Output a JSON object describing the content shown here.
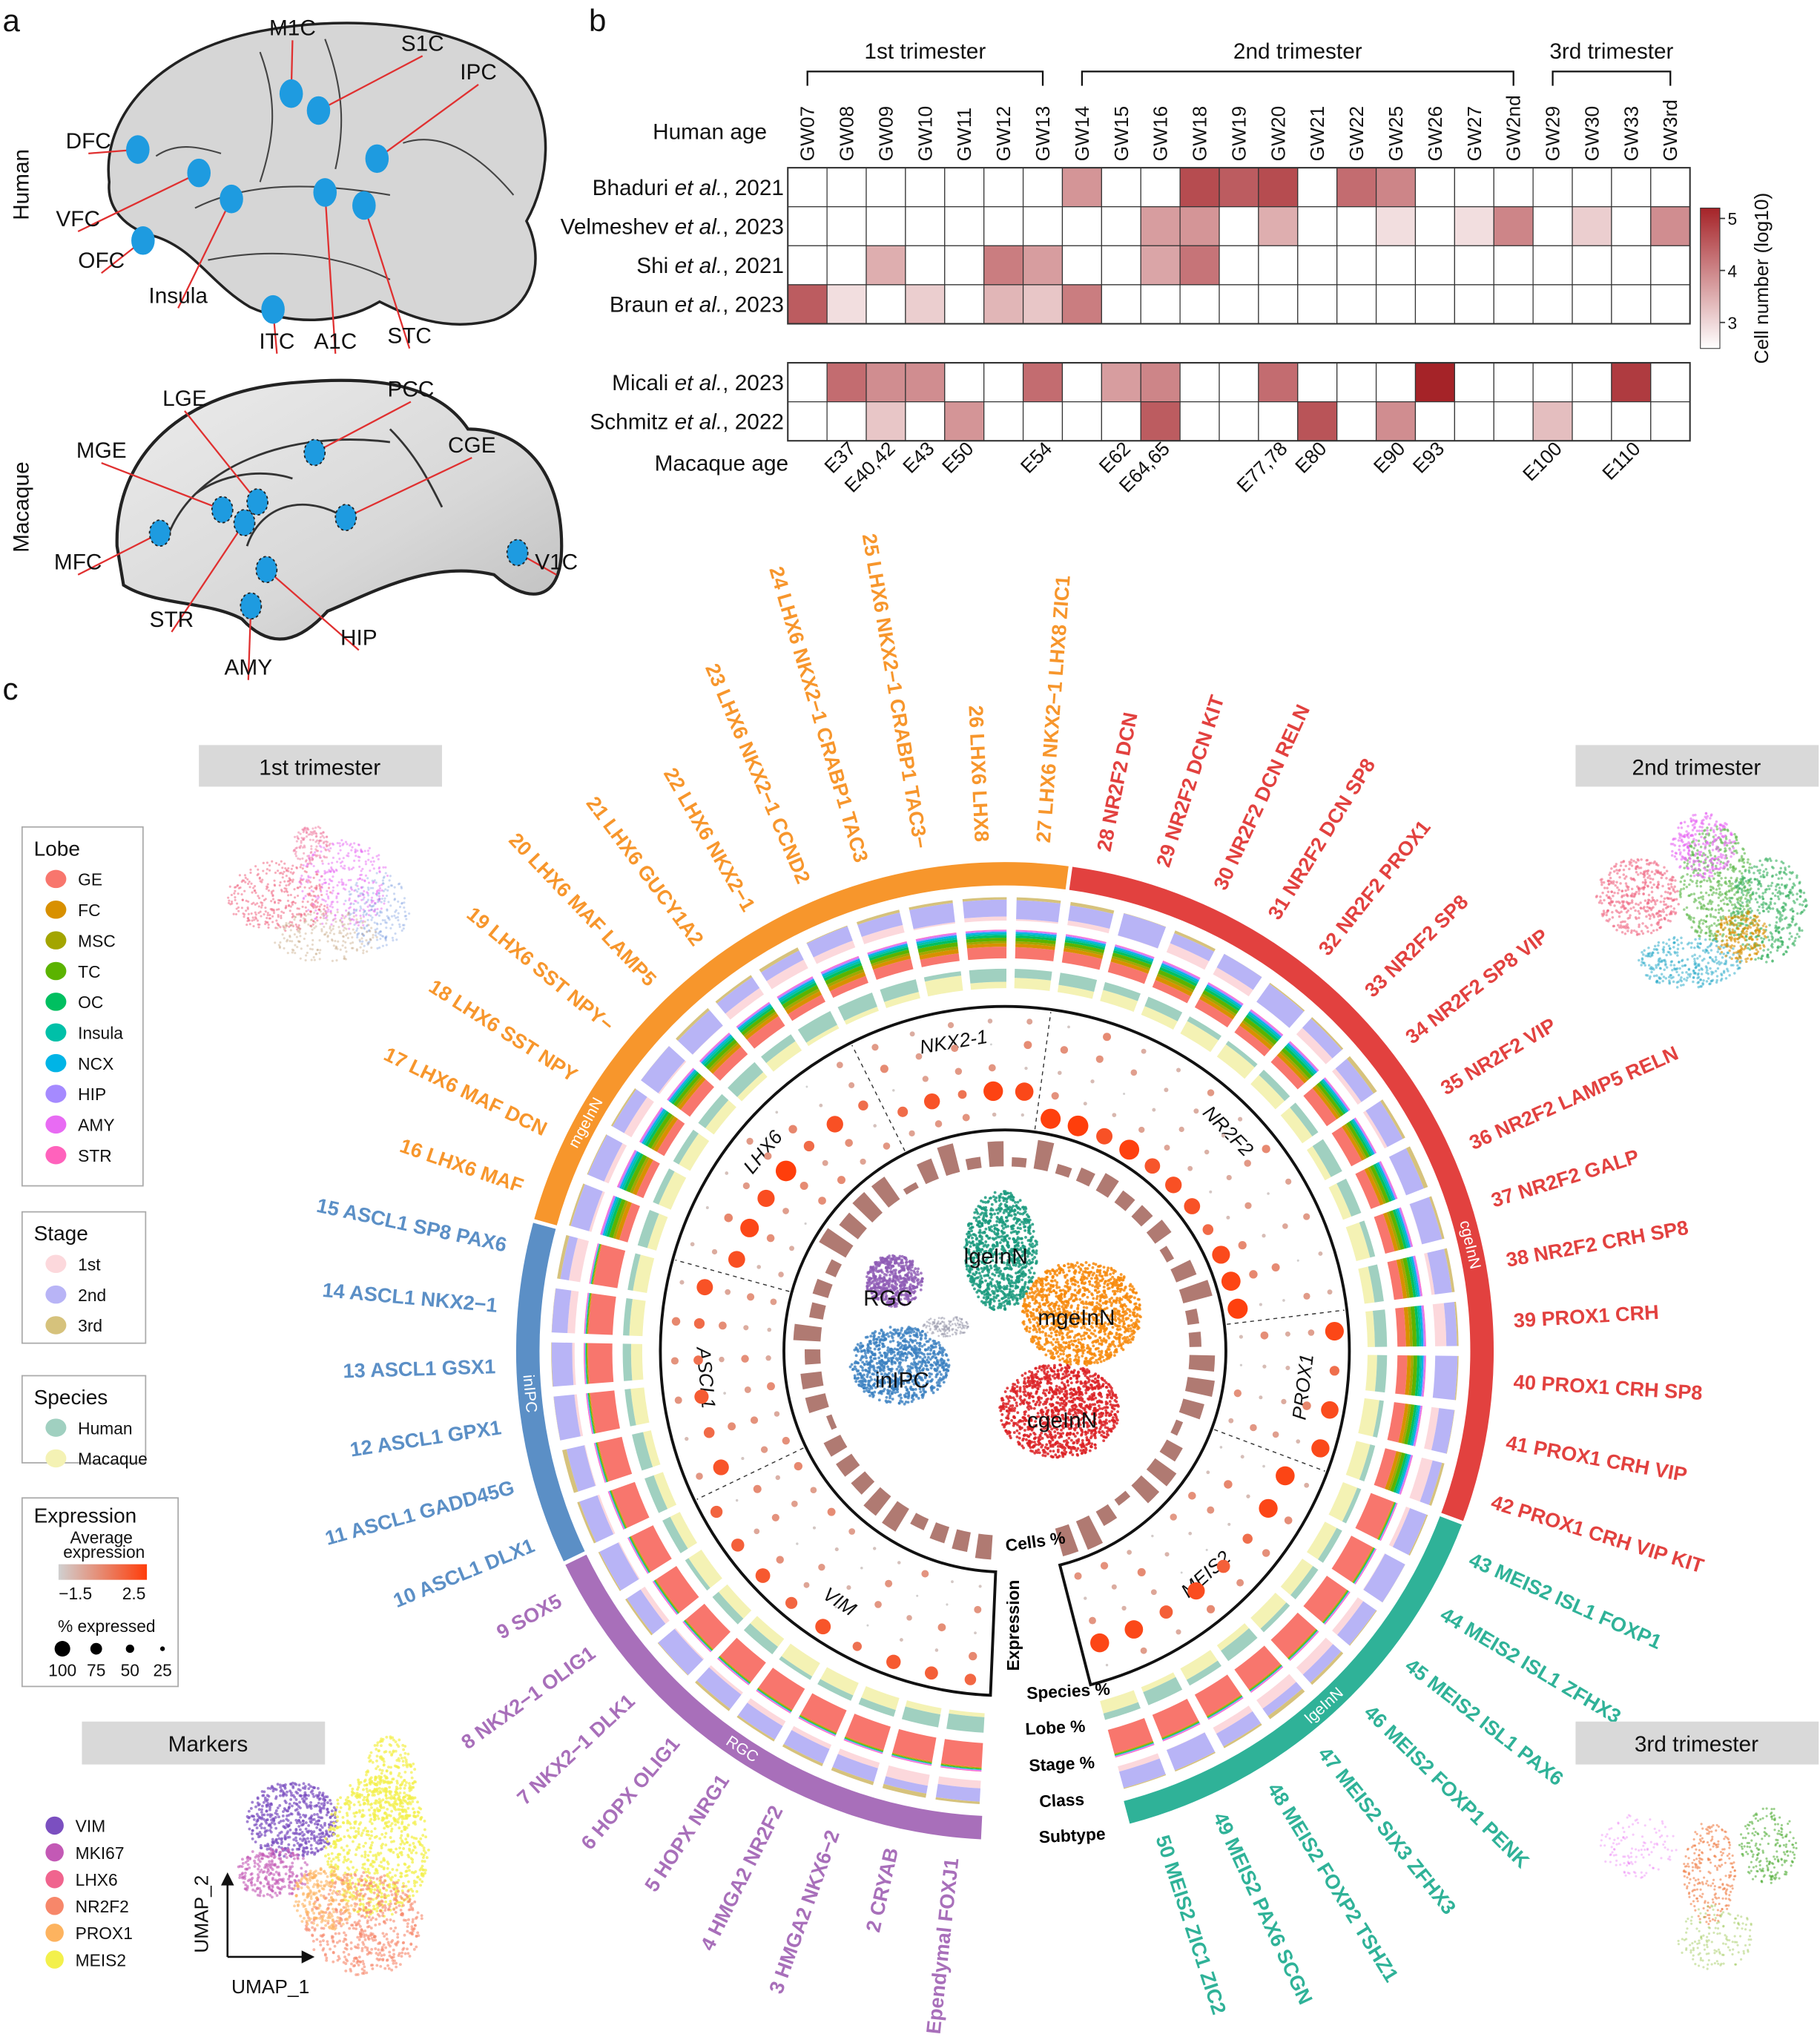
{
  "panels": {
    "a": "a",
    "b": "b",
    "c": "c"
  },
  "panel_a": {
    "human_label": "Human",
    "macaque_label": "Macaque",
    "human_regions": [
      "M1C",
      "S1C",
      "IPC",
      "DFC",
      "VFC",
      "OFC",
      "Insula",
      "ITC",
      "A1C",
      "STC"
    ],
    "macaque_regions": [
      "LGE",
      "PCC",
      "MGE",
      "CGE",
      "MFC",
      "V1C",
      "STR",
      "HIP",
      "AMY"
    ],
    "region_color": "#1e9be0",
    "line_color": "#e03030"
  },
  "chart_data": {
    "type": "heatmap",
    "title": "",
    "xlabel": "Human age",
    "x2label": "Macaque age",
    "colorbar_label": "Cell number (log10)",
    "colorbar_ticks": [
      3,
      4,
      5
    ],
    "color_range": [
      2.5,
      5.2
    ],
    "colors": {
      "low": "#ffffff",
      "high": "#a52328"
    },
    "trimesters": [
      {
        "label": "1st trimester",
        "from": "GW07",
        "to": "GW13"
      },
      {
        "label": "2nd trimester",
        "from": "GW14",
        "to": "GW2nd"
      },
      {
        "label": "3rd trimester",
        "from": "GW29",
        "to": "GW3rd"
      }
    ],
    "columns": [
      "GW07",
      "GW08",
      "GW09",
      "GW10",
      "GW11",
      "GW12",
      "GW13",
      "GW14",
      "GW15",
      "GW16",
      "GW18",
      "GW19",
      "GW20",
      "GW21",
      "GW22",
      "GW25",
      "GW26",
      "GW27",
      "GW2nd",
      "GW29",
      "GW30",
      "GW33",
      "GW3rd"
    ],
    "macaque_ages": [
      {
        "label": "E37",
        "column": "GW08"
      },
      {
        "label": "E40,42",
        "column": "GW09"
      },
      {
        "label": "E43",
        "column": "GW10"
      },
      {
        "label": "E50",
        "column": "GW11"
      },
      {
        "label": "E54",
        "column": "GW13"
      },
      {
        "label": "E62",
        "column": "GW15"
      },
      {
        "label": "E64,65",
        "column": "GW16"
      },
      {
        "label": "E77,78",
        "column": "GW20"
      },
      {
        "label": "E80",
        "column": "GW21"
      },
      {
        "label": "E90",
        "column": "GW25"
      },
      {
        "label": "E93",
        "column": "GW26"
      },
      {
        "label": "E100",
        "column": "GW29"
      },
      {
        "label": "E110",
        "column": "GW33"
      }
    ],
    "rows": [
      {
        "author": "Bhaduri ",
        "etal": "et al.",
        "year": ", 2021",
        "species": "human",
        "values": [
          null,
          null,
          null,
          null,
          null,
          null,
          null,
          3.8,
          null,
          null,
          4.7,
          4.5,
          4.7,
          null,
          4.3,
          4.0,
          null,
          null,
          null,
          null,
          null,
          null,
          null
        ]
      },
      {
        "author": "Velmeshev ",
        "etal": "et al.",
        "year": ", 2023",
        "species": "human",
        "values": [
          null,
          null,
          null,
          null,
          null,
          null,
          null,
          null,
          null,
          3.7,
          3.8,
          null,
          3.5,
          null,
          null,
          2.9,
          null,
          2.9,
          4.0,
          null,
          3.1,
          null,
          3.9
        ]
      },
      {
        "author": "Shi ",
        "etal": "et al.",
        "year": ", 2021",
        "species": "human",
        "values": [
          null,
          null,
          3.5,
          null,
          null,
          4.1,
          3.7,
          null,
          null,
          3.6,
          4.2,
          null,
          null,
          null,
          null,
          null,
          null,
          null,
          null,
          null,
          null,
          null,
          null
        ]
      },
      {
        "author": "Braun ",
        "etal": "et al.",
        "year": ", 2023",
        "species": "human",
        "values": [
          4.5,
          2.9,
          null,
          3.1,
          null,
          3.4,
          3.2,
          4.1,
          null,
          null,
          null,
          null,
          null,
          null,
          null,
          null,
          null,
          null,
          null,
          null,
          null,
          null,
          null
        ]
      },
      {
        "author": "Micali ",
        "etal": "et al.",
        "year": ", 2023",
        "species": "macaque",
        "values": [
          null,
          4.3,
          3.9,
          3.9,
          null,
          null,
          4.3,
          null,
          3.7,
          4.0,
          null,
          null,
          4.3,
          null,
          null,
          null,
          5.2,
          null,
          null,
          null,
          null,
          4.9,
          null
        ]
      },
      {
        "author": "Schmitz ",
        "etal": "et al.",
        "year": ", 2022",
        "species": "macaque",
        "values": [
          null,
          null,
          3.2,
          null,
          3.8,
          null,
          null,
          null,
          null,
          4.5,
          null,
          null,
          null,
          4.6,
          null,
          3.9,
          null,
          null,
          null,
          3.3,
          null,
          null,
          null
        ]
      }
    ]
  },
  "panel_c": {
    "stage_boxes": {
      "first": "1st trimester",
      "second": "2nd trimester",
      "third": "3rd trimester",
      "markers": "Markers"
    },
    "umap_axes": {
      "x": "UMAP_1",
      "y": "UMAP_2"
    },
    "center_umap_labels": {
      "rgc": "RGC",
      "inipc": "inIPC",
      "lge": "lgeInN",
      "mge": "mgeInN",
      "cge": "cgeInN"
    },
    "ring_labels": {
      "cells": "Cells %",
      "expression": "Expression",
      "species": "Species %",
      "lobe": "Lobe %",
      "stage": "Stage %",
      "class": "Class",
      "subtype": "Subtype"
    },
    "classes": [
      {
        "name": "RGC",
        "color": "#a86fba",
        "from": 1,
        "to": 9
      },
      {
        "name": "inIPC",
        "color": "#5b8fc6",
        "from": 10,
        "to": 15
      },
      {
        "name": "mgeInN",
        "color": "#f7962c",
        "from": 16,
        "to": 27
      },
      {
        "name": "cgeInN",
        "color": "#e2413f",
        "from": 28,
        "to": 42
      },
      {
        "name": "lgeInN",
        "color": "#2fb298",
        "from": 43,
        "to": 50
      }
    ],
    "genes": [
      {
        "name": "VIM",
        "from": 1,
        "to": 9
      },
      {
        "name": "ASCL1",
        "from": 10,
        "to": 15
      },
      {
        "name": "LHX6",
        "from": 16,
        "to": 22
      },
      {
        "name": "NKX2-1",
        "from": 23,
        "to": 27
      },
      {
        "name": "NR2F2",
        "from": 28,
        "to": 38
      },
      {
        "name": "PROX1",
        "from": 39,
        "to": 42
      },
      {
        "name": "MEIS2",
        "from": 43,
        "to": 50
      }
    ],
    "subtypes": [
      "1 Ependymal FOXJ1",
      "2 CRYAB",
      "3 HMGA2 NKX6−2",
      "4 HMGA2 NR2F2",
      "5 HOPX NRG1",
      "6 HOPX OLIG1",
      "7 NKX2−1 DLK1",
      "8 NKX2−1 OLIG1",
      "9 SOX5",
      "10 ASCL1 DLX1",
      "11 ASCL1 GADD45G",
      "12 ASCL1 GPX1",
      "13 ASCL1 GSX1",
      "14 ASCL1 NKX2−1",
      "15 ASCL1 SP8 PAX6",
      "16 LHX6 MAF",
      "17 LHX6 MAF DCN",
      "18 LHX6 SST NPY",
      "19 LHX6 SST NPY−",
      "20 LHX6 MAF LAMP5",
      "21 LHX6 GUCY1A2",
      "22 LHX6 NKX2−1",
      "23 LHX6 NKX2−1 CCND2",
      "24 LHX6 NKX2−1 CRABP1 TAC3",
      "25 LHX6 NKX2−1 CRABP1 TAC3−",
      "26 LHX6 LHX8",
      "27 LHX6 NKX2−1 LHX8 ZIC1",
      "28 NR2F2 DCN",
      "29 NR2F2 DCN KIT",
      "30 NR2F2 DCN RELN",
      "31 NR2F2 DCN SP8",
      "32 NR2F2 PROX1",
      "33 NR2F2 SP8",
      "34 NR2F2 SP8 VIP",
      "35 NR2F2 VIP",
      "36 NR2F2 LAMP5 RELN",
      "37 NR2F2 GALP",
      "38 NR2F2 CRH SP8",
      "39 PROX1 CRH",
      "40 PROX1 CRH SP8",
      "41 PROX1 CRH VIP",
      "42 PROX1 CRH VIP KIT",
      "43 MEIS2 ISL1 FOXP1",
      "44 MEIS2 ISL1 ZFHX3",
      "45 MEIS2 ISL1 PAX6",
      "46 MEIS2 FOXP1 PENK",
      "47 MEIS2 SIX3 ZFHX3",
      "48 MEIS2 FOXP2 TSHZ1",
      "49 MEIS2 PAX6 SCGN",
      "50 MEIS2 ZIC1 ZIC2"
    ],
    "legends": {
      "lobe": {
        "title": "Lobe",
        "items": [
          {
            "label": "GE",
            "color": "#f8766d"
          },
          {
            "label": "FC",
            "color": "#d89000"
          },
          {
            "label": "MSC",
            "color": "#a3a500"
          },
          {
            "label": "TC",
            "color": "#5bb300"
          },
          {
            "label": "OC",
            "color": "#00bf60"
          },
          {
            "label": "Insula",
            "color": "#00c0a8"
          },
          {
            "label": "NCX",
            "color": "#00b4e6"
          },
          {
            "label": "HIP",
            "color": "#a58aff"
          },
          {
            "label": "AMY",
            "color": "#e86bf3"
          },
          {
            "label": "STR",
            "color": "#ff62bc"
          }
        ]
      },
      "stage": {
        "title": "Stage",
        "items": [
          {
            "label": "1st",
            "color": "#fcd8dc"
          },
          {
            "label": "2nd",
            "color": "#b8b4f6"
          },
          {
            "label": "3rd",
            "color": "#d6c27c"
          }
        ]
      },
      "species": {
        "title": "Species",
        "items": [
          {
            "label": "Human",
            "color": "#a0d0c0"
          },
          {
            "label": "Macaque",
            "color": "#f4f2b4"
          }
        ]
      },
      "expression": {
        "title": "Expression",
        "avg_label_1": "Average",
        "avg_label_2": "expression",
        "range": [
          "−1.5",
          "2.5"
        ],
        "gradient": [
          "#d0d0d0",
          "#ff3d0a"
        ],
        "pct_label": "% expressed",
        "sizes": [
          "100",
          "75",
          "50",
          "25"
        ]
      },
      "markers": {
        "items": [
          {
            "label": "VIM",
            "color": "#7b4fc0"
          },
          {
            "label": "MKI67",
            "color": "#c359b5"
          },
          {
            "label": "LHX6",
            "color": "#f0648e"
          },
          {
            "label": "NR2F2",
            "color": "#f7876a"
          },
          {
            "label": "PROX1",
            "color": "#fdb35f"
          },
          {
            "label": "MEIS2",
            "color": "#f3f04c"
          }
        ]
      }
    }
  }
}
